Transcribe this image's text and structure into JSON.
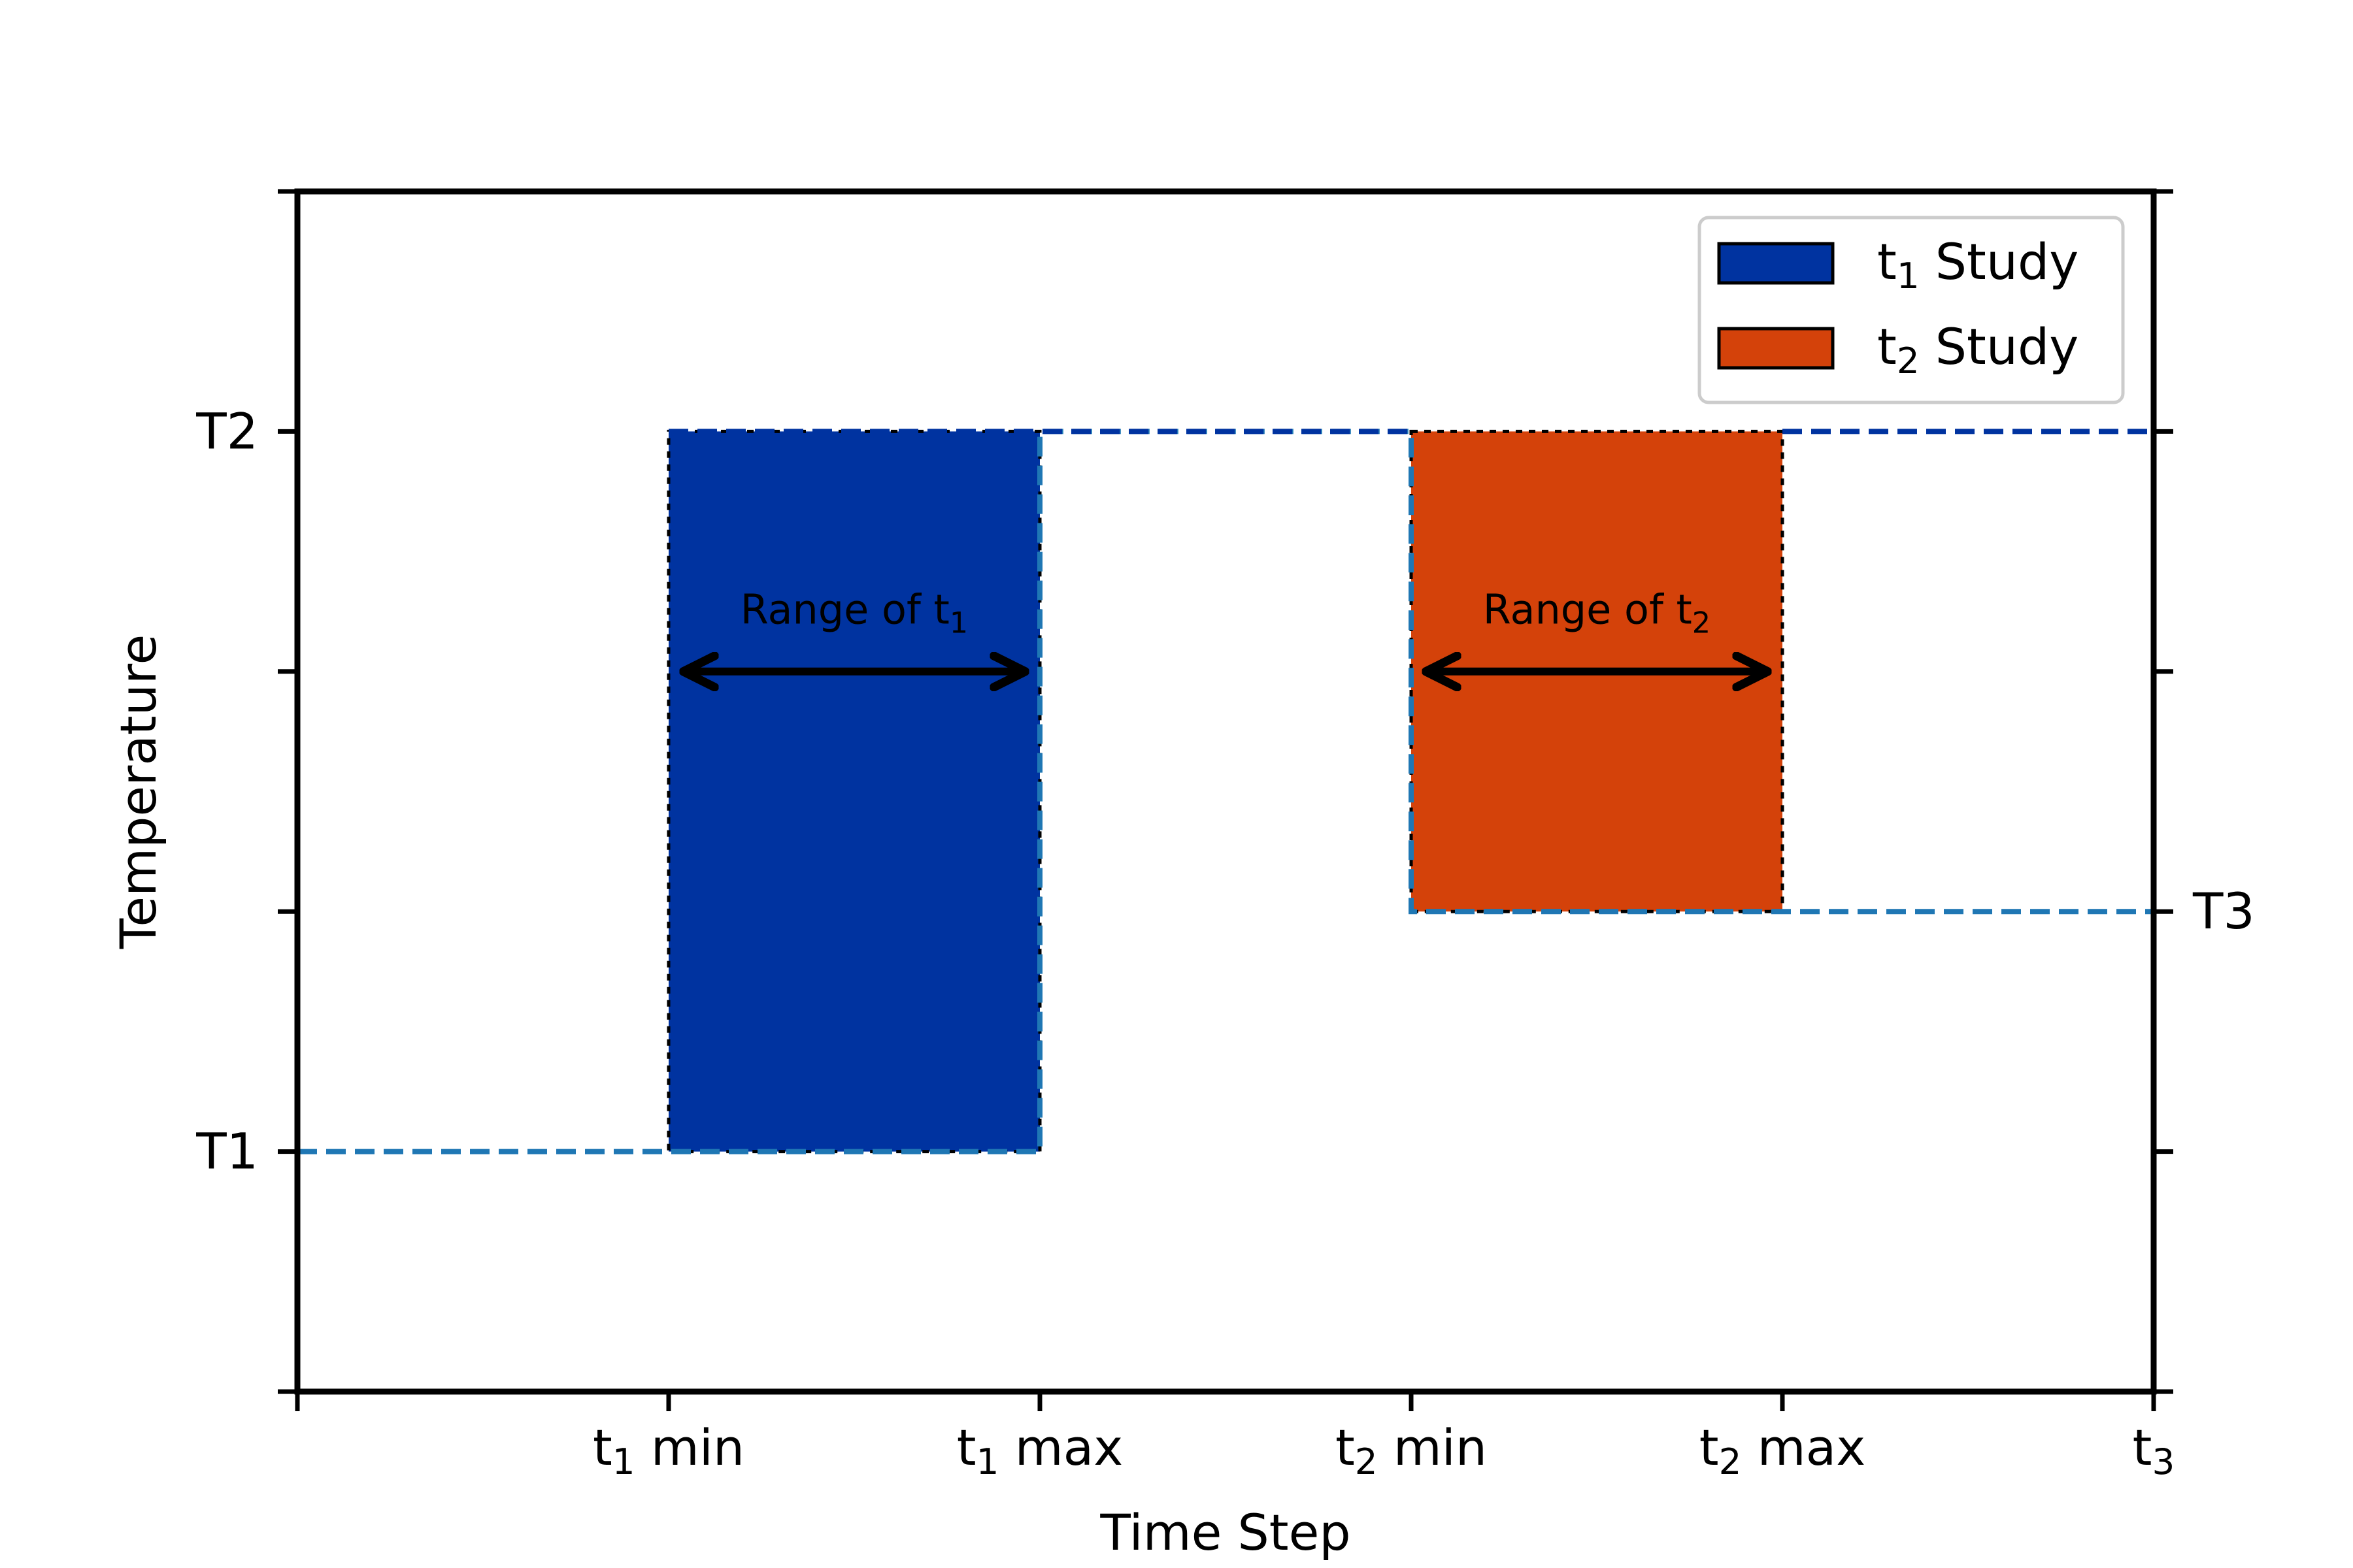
{
  "chart_data": {
    "type": "area",
    "xlabel": "Time Step",
    "ylabel": "Temperature",
    "xlim": [
      0,
      5
    ],
    "ylim": [
      0,
      5
    ],
    "x_ticks": [
      {
        "value": 0,
        "main": "",
        "sub": "",
        "rest": ""
      },
      {
        "value": 1,
        "main": "t",
        "sub": "1",
        "rest": " min"
      },
      {
        "value": 2,
        "main": "t",
        "sub": "1",
        "rest": " max"
      },
      {
        "value": 3,
        "main": "t",
        "sub": "2",
        "rest": " min"
      },
      {
        "value": 4,
        "main": "t",
        "sub": "2",
        "rest": " max"
      },
      {
        "value": 5,
        "main": "t",
        "sub": "3",
        "rest": ""
      }
    ],
    "y_ticks_left": [
      {
        "value": 0,
        "label": ""
      },
      {
        "value": 1,
        "label": "T1"
      },
      {
        "value": 2,
        "label": ""
      },
      {
        "value": 3,
        "label": ""
      },
      {
        "value": 4,
        "label": "T2"
      },
      {
        "value": 5,
        "label": ""
      }
    ],
    "y_ticks_right": [
      {
        "value": 0,
        "label": ""
      },
      {
        "value": 1,
        "label": ""
      },
      {
        "value": 2,
        "label": "T3"
      },
      {
        "value": 3,
        "label": ""
      },
      {
        "value": 4,
        "label": ""
      },
      {
        "value": 5,
        "label": ""
      }
    ],
    "regions": [
      {
        "name": "t1 Study",
        "x": [
          1,
          2
        ],
        "y": [
          1,
          4
        ],
        "color": "#0033a0"
      },
      {
        "name": "t2 Study",
        "x": [
          3,
          4
        ],
        "y": [
          2,
          4
        ],
        "color": "#d4420a"
      }
    ],
    "lines": [
      {
        "name": "profile-light",
        "color": "#1f77b4",
        "dashed": true,
        "points": [
          [
            0,
            1
          ],
          [
            2,
            1
          ],
          [
            2,
            4
          ],
          [
            3,
            4
          ],
          [
            3,
            2
          ],
          [
            5,
            2
          ]
        ]
      },
      {
        "name": "profile-dark",
        "color": "#0033a0",
        "dashed": true,
        "points": [
          [
            1,
            4
          ],
          [
            3,
            4
          ]
        ]
      },
      {
        "name": "profile-dark-tail",
        "color": "#0033a0",
        "dashed": true,
        "points": [
          [
            4,
            4
          ],
          [
            5,
            4
          ]
        ]
      }
    ],
    "annotations": [
      {
        "main": "Range of t",
        "sub": "1",
        "x": 1.5,
        "y": 3.2,
        "arrow_x": [
          1.05,
          1.95
        ],
        "arrow_y": 3
      },
      {
        "main": "Range of t",
        "sub": "2",
        "x": 3.5,
        "y": 3.2,
        "arrow_x": [
          3.05,
          3.95
        ],
        "arrow_y": 3
      }
    ],
    "legend": {
      "placement": "top-right",
      "items": [
        {
          "main": "t",
          "sub": "1",
          "rest": " Study",
          "color": "#0033a0"
        },
        {
          "main": "t",
          "sub": "2",
          "rest": " Study",
          "color": "#d4420a"
        }
      ]
    }
  }
}
